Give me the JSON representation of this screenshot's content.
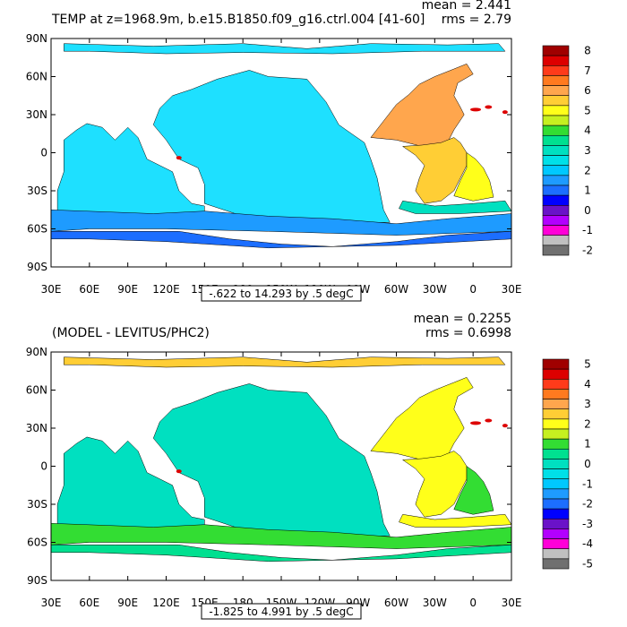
{
  "chart_data": [
    {
      "type": "heatmap",
      "title": "TEMP at z=1968.9m, b.e15.B1850.f09_g16.ctrl.004 [41-60]",
      "stats": [
        "mean = 2.441",
        "rms = 2.79"
      ],
      "range_label": "-.622 to 14.293 by .5 degC",
      "x_ticks": [
        "30E",
        "60E",
        "90E",
        "120E",
        "150E",
        "180",
        "150W",
        "120W",
        "90W",
        "60W",
        "30W",
        "0",
        "30E"
      ],
      "y_ticks": [
        "90N",
        "60N",
        "30N",
        "0",
        "30S",
        "60S",
        "90S"
      ],
      "colorbar": {
        "labels": [
          "8",
          "7",
          "6",
          "5",
          "4",
          "3",
          "2",
          "1",
          "0",
          "-1",
          "-2"
        ],
        "colors": [
          "#a00000",
          "#dd0000",
          "#ff3b1a",
          "#ff7a1f",
          "#ffa64d",
          "#ffce35",
          "#ffff1a",
          "#c6f020",
          "#33dd33",
          "#00e090",
          "#00e0c0",
          "#00e0e8",
          "#00c8ff",
          "#1e9bff",
          "#1c6eff",
          "#0000ff",
          "#6a12c8",
          "#b200ff",
          "#ff00d8",
          "#c0c0c0",
          "#707070"
        ]
      },
      "fields": {
        "arctic": "#1ee0ff",
        "pacific": "#1ee0ff",
        "indian": "#1ee0ff",
        "south_band": "#1e9bff",
        "south_low": "#1c6eff",
        "atlantic_north": "#ffa64d",
        "atlantic_tropics": "#ffce35",
        "atlantic_east": "#ffff1a",
        "atlantic_south": "#00e0c0",
        "hotspots": "#dd0000"
      }
    },
    {
      "type": "heatmap",
      "title": "(MODEL - LEVITUS/PHC2)",
      "stats": [
        "mean = 0.2255",
        "rms = 0.6998"
      ],
      "range_label": "-1.825 to 4.991 by .5 degC",
      "x_ticks": [
        "30E",
        "60E",
        "90E",
        "120E",
        "150E",
        "180",
        "150W",
        "120W",
        "90W",
        "60W",
        "30W",
        "0",
        "30E"
      ],
      "y_ticks": [
        "90N",
        "60N",
        "30N",
        "0",
        "30S",
        "60S",
        "90S"
      ],
      "colorbar": {
        "labels": [
          "5",
          "4",
          "3",
          "2",
          "1",
          "0",
          "-1",
          "-2",
          "-3",
          "-4",
          "-5"
        ],
        "colors": [
          "#a00000",
          "#dd0000",
          "#ff3b1a",
          "#ff7a1f",
          "#ffa64d",
          "#ffce35",
          "#ffff1a",
          "#c6f020",
          "#33dd33",
          "#00e090",
          "#00e0c0",
          "#00e0e8",
          "#00c8ff",
          "#1e9bff",
          "#1c6eff",
          "#0000ff",
          "#6a12c8",
          "#b200ff",
          "#ff00d8",
          "#c0c0c0",
          "#707070"
        ]
      },
      "fields": {
        "arctic": "#ffce35",
        "pacific": "#00e0c0",
        "indian": "#00e0c0",
        "south_band": "#33dd33",
        "south_low": "#00e090",
        "atlantic_north": "#ffff1a",
        "atlantic_tropics": "#ffff1a",
        "atlantic_east": "#33dd33",
        "atlantic_south": "#ffff1a",
        "hotspots": "#dd0000"
      }
    }
  ]
}
